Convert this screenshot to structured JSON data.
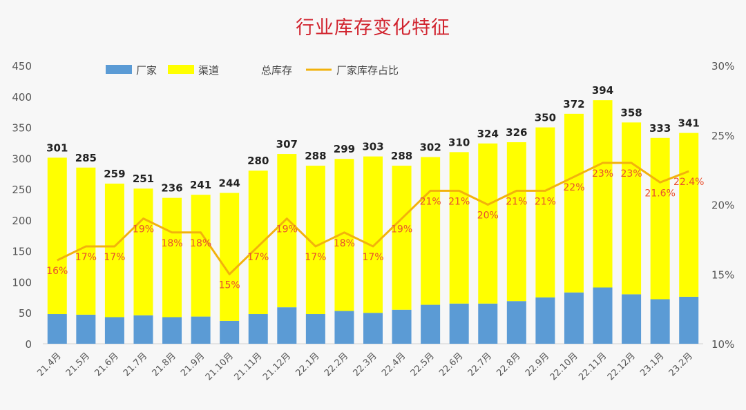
{
  "chart_data": {
    "type": "bar",
    "title": "行业库存变化特征",
    "categories": [
      "21.4月",
      "21.5月",
      "21.6月",
      "21.7月",
      "21.8月",
      "21.9月",
      "21.10月",
      "21.11月",
      "21.12月",
      "22.1月",
      "22.2月",
      "22.3月",
      "22.4月",
      "22.5月",
      "22.6月",
      "22.7月",
      "22.8月",
      "22.9月",
      "22.10月",
      "22.11月",
      "22.12月",
      "23.1月",
      "23.2月"
    ],
    "series": [
      {
        "name": "厂家",
        "color": "#5b9bd5",
        "values": [
          48,
          47,
          43,
          46,
          43,
          44,
          37,
          48,
          59,
          48,
          53,
          50,
          55,
          63,
          65,
          65,
          69,
          75,
          83,
          91,
          80,
          72,
          76
        ]
      },
      {
        "name": "渠道",
        "color": "#ffff00",
        "values": [
          253,
          238,
          216,
          205,
          193,
          197,
          207,
          232,
          248,
          240,
          246,
          253,
          233,
          239,
          245,
          259,
          257,
          275,
          289,
          303,
          278,
          261,
          265
        ]
      },
      {
        "name": "总库存",
        "values": [
          301,
          285,
          259,
          251,
          236,
          241,
          244,
          280,
          307,
          288,
          299,
          303,
          288,
          302,
          310,
          324,
          326,
          350,
          372,
          394,
          358,
          333,
          341
        ]
      },
      {
        "name": "厂家库存占比",
        "color": "#f2b20c",
        "axis": "right",
        "values": [
          16,
          17,
          17,
          19,
          18,
          18,
          15,
          17,
          19,
          17,
          18,
          17,
          19,
          21,
          21,
          20,
          21,
          21,
          22,
          23,
          23,
          21.6,
          22.4
        ]
      }
    ],
    "share_labels": [
      "16%",
      "17%",
      "17%",
      "19%",
      "18%",
      "18%",
      "15%",
      "17%",
      "19%",
      "17%",
      "18%",
      "17%",
      "19%",
      "21%",
      "21%",
      "20%",
      "21%",
      "21%",
      "22%",
      "23%",
      "23%",
      "21.6%",
      "22.4%"
    ],
    "ylim": [
      0,
      450
    ],
    "y_ticks": [
      "0",
      "50",
      "100",
      "150",
      "200",
      "250",
      "300",
      "350",
      "400",
      "450"
    ],
    "y2lim": [
      10,
      30
    ],
    "y2_ticks": [
      "10%",
      "15%",
      "20%",
      "25%",
      "30%"
    ],
    "legend": {
      "placement": "top-left",
      "items": [
        "厂家",
        "渠道",
        "总库存",
        "厂家库存占比"
      ]
    },
    "grid": false,
    "colors": {
      "title": "#d1242f",
      "share_label": "#e8502e",
      "total_label": "#222222",
      "axis_text": "#555555"
    }
  }
}
